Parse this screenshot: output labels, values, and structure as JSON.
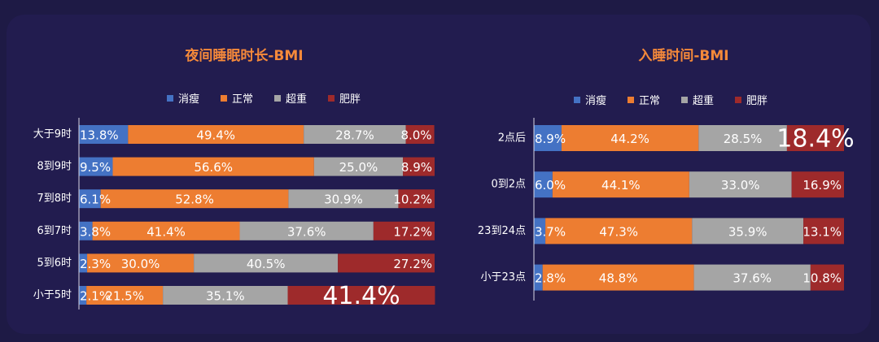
{
  "colors": {
    "slim": "#4472c4",
    "normal": "#ed7d31",
    "over": "#a5a5a5",
    "obese": "#9e2a2b"
  },
  "chart_data": [
    {
      "type": "bar",
      "stacked": true,
      "orientation": "horizontal",
      "title": "夜间睡眠时长-BMI",
      "legend": [
        "消瘦",
        "正常",
        "超重",
        "肥胖"
      ],
      "legend_position": "top",
      "categories": [
        "大于9时",
        "8到9时",
        "7到8时",
        "6到7时",
        "5到6时",
        "小于5时"
      ],
      "series": [
        {
          "name": "消瘦",
          "values": [
            13.8,
            9.5,
            6.1,
            3.8,
            2.3,
            2.1
          ],
          "labels": [
            "13.8%",
            "9.5%",
            "6.1%",
            "3.8%",
            "2.3%",
            "2.1%"
          ]
        },
        {
          "name": "正常",
          "values": [
            49.4,
            56.6,
            52.8,
            41.4,
            30.0,
            21.5
          ],
          "labels": [
            "49.4%",
            "56.6%",
            "52.8%",
            "41.4%",
            "30.0%",
            "21.5%"
          ]
        },
        {
          "name": "超重",
          "values": [
            28.7,
            25.0,
            30.9,
            37.6,
            40.5,
            35.1
          ],
          "labels": [
            "28.7%",
            "25.0%",
            "30.9%",
            "37.6%",
            "40.5%",
            "35.1%"
          ]
        },
        {
          "name": "肥胖",
          "values": [
            8.0,
            8.9,
            10.2,
            17.2,
            27.2,
            41.4
          ],
          "labels": [
            "8.0%",
            "8.9%",
            "10.2%",
            "17.2%",
            "27.2%",
            "41.4%"
          ]
        }
      ],
      "emphasized_label": "41.4%",
      "xlim": [
        0,
        100
      ]
    },
    {
      "type": "bar",
      "stacked": true,
      "orientation": "horizontal",
      "title": "入睡时间-BMI",
      "legend": [
        "消瘦",
        "正常",
        "超重",
        "肥胖"
      ],
      "legend_position": "top",
      "categories": [
        "2点后",
        "0到2点",
        "23到24点",
        "小于23点"
      ],
      "series": [
        {
          "name": "消瘦",
          "values": [
            8.9,
            6.0,
            3.7,
            2.8
          ],
          "labels": [
            "8.9%",
            "6.0%",
            "3.7%",
            "2.8%"
          ]
        },
        {
          "name": "正常",
          "values": [
            44.2,
            44.1,
            47.3,
            48.8
          ],
          "labels": [
            "44.2%",
            "44.1%",
            "47.3%",
            "48.8%"
          ]
        },
        {
          "name": "超重",
          "values": [
            28.5,
            33.0,
            35.9,
            37.6
          ],
          "labels": [
            "28.5%",
            "33.0%",
            "35.9%",
            "37.6%"
          ]
        },
        {
          "name": "肥胖",
          "values": [
            18.4,
            16.9,
            13.1,
            10.8
          ],
          "labels": [
            "18.4%",
            "16.9%",
            "13.1%",
            "10.8%"
          ]
        }
      ],
      "emphasized_label": "18.4%",
      "xlim": [
        0,
        100
      ]
    }
  ]
}
